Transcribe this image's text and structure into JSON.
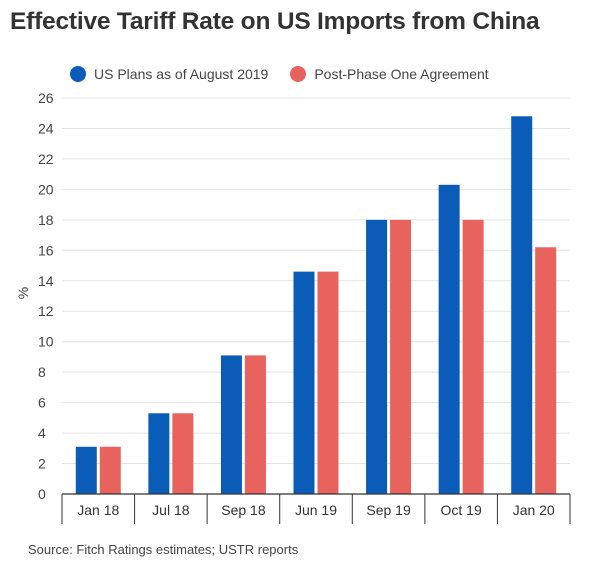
{
  "chart_data": {
    "type": "bar",
    "title": "Effective Tariff Rate on US Imports from China",
    "ylabel": "%",
    "xlabel": "",
    "ylim": [
      0,
      26
    ],
    "yticks": [
      0,
      2,
      4,
      6,
      8,
      10,
      12,
      14,
      16,
      18,
      20,
      22,
      24,
      26
    ],
    "grid": true,
    "legend_position": "top-left",
    "categories": [
      "Jan 18",
      "Jul 18",
      "Sep 18",
      "Jun 19",
      "Sep 19",
      "Oct 19",
      "Jan 20"
    ],
    "series": [
      {
        "name": "US Plans as of August 2019",
        "color": "#0a5cb8",
        "values": [
          3.1,
          5.3,
          9.1,
          14.6,
          18.0,
          20.3,
          24.8
        ]
      },
      {
        "name": "Post-Phase One Agreement",
        "color": "#e8625e",
        "values": [
          3.1,
          5.3,
          9.1,
          14.6,
          18.0,
          18.0,
          16.2
        ]
      }
    ],
    "source": "Source: Fitch Ratings estimates; USTR reports"
  }
}
